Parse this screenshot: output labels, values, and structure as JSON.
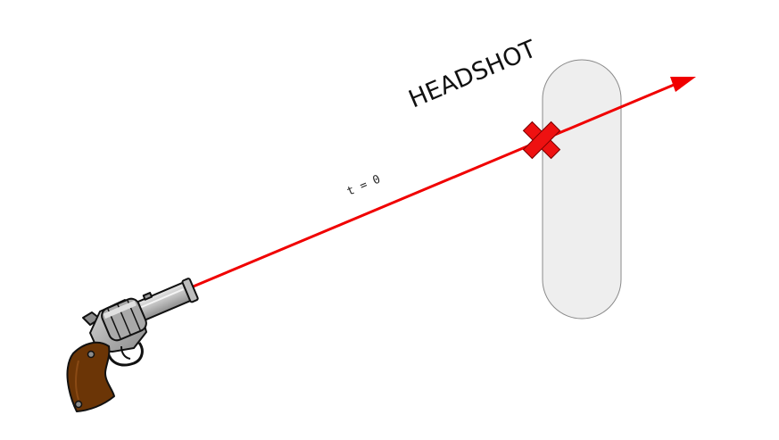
{
  "diagram": {
    "headshot_label": "HEADSHOT",
    "time_label": "t = 0"
  },
  "colors": {
    "ray": "#f00000",
    "hit_marker": "#ee1111",
    "hit_marker_outline": "#7a0000",
    "target_fill": "#eeeeee",
    "target_stroke": "#8a8a8a",
    "gun_metal_light": "#c8c8c8",
    "gun_metal_dark": "#8c8c8c",
    "gun_grip": "#6b3506",
    "outline": "#111111"
  },
  "icons": {
    "gun": "revolver-icon",
    "hit": "x-mark-icon",
    "target": "capsule-target"
  }
}
